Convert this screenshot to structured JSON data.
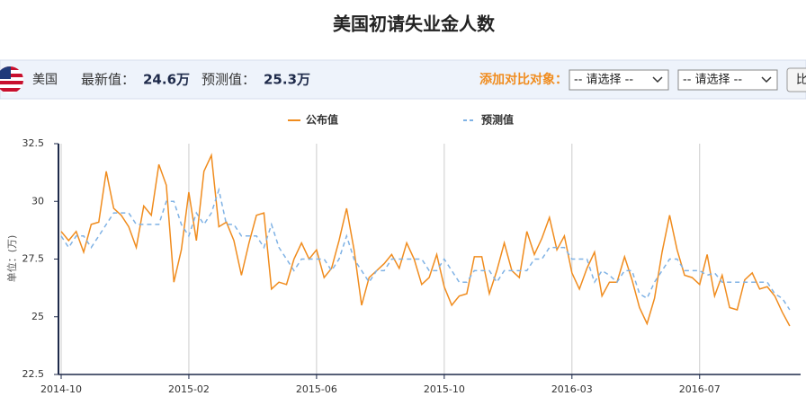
{
  "toolbar": {
    "country": "美国",
    "latest_label": "最新值：",
    "latest_value": "24.6万",
    "forecast_label": "预测值：",
    "forecast_value": "25.3万",
    "compare_label": "添加对比对象：",
    "select1": "-- 请选择 --",
    "select2": "-- 请选择 --",
    "button": "比"
  },
  "chart_data": {
    "type": "line",
    "title": "美国初请失业金人数",
    "y_label": "单位：(万)",
    "categories": [
      "2014-10",
      null,
      null,
      null,
      null,
      null,
      null,
      null,
      null,
      null,
      null,
      null,
      null,
      null,
      null,
      null,
      null,
      "2015-02",
      null,
      null,
      null,
      null,
      null,
      null,
      null,
      null,
      null,
      null,
      null,
      null,
      null,
      null,
      null,
      null,
      "2015-06",
      null,
      null,
      null,
      null,
      null,
      null,
      null,
      null,
      null,
      null,
      null,
      null,
      null,
      null,
      null,
      null,
      "2015-10",
      null,
      null,
      null,
      null,
      null,
      null,
      null,
      null,
      null,
      null,
      null,
      null,
      null,
      null,
      null,
      null,
      "2016-03",
      null,
      null,
      null,
      null,
      null,
      null,
      null,
      null,
      null,
      null,
      null,
      null,
      null,
      null,
      null,
      null,
      "2016-07",
      null,
      null,
      null,
      null,
      null,
      null,
      null,
      null,
      null,
      null,
      null,
      null
    ],
    "series": [
      {
        "name": "公布值",
        "color": "#f08c1e",
        "dashed": false,
        "values": [
          28.7,
          28.3,
          28.7,
          27.8,
          29.0,
          29.1,
          31.3,
          29.7,
          29.4,
          28.9,
          28.0,
          29.8,
          29.4,
          31.6,
          30.7,
          26.5,
          27.9,
          30.4,
          28.3,
          31.3,
          32.0,
          28.9,
          29.1,
          28.3,
          26.8,
          28.2,
          29.4,
          29.5,
          26.2,
          26.5,
          26.4,
          27.5,
          28.2,
          27.5,
          27.9,
          26.7,
          27.1,
          28.3,
          29.7,
          27.9,
          25.5,
          26.7,
          27.0,
          27.3,
          27.7,
          27.1,
          28.2,
          27.5,
          26.4,
          26.7,
          27.7,
          26.3,
          25.5,
          25.9,
          26.0,
          27.6,
          27.6,
          26.0,
          27.0,
          28.2,
          27.0,
          26.7,
          28.7,
          27.7,
          28.4,
          29.3,
          27.9,
          28.5,
          26.9,
          26.2,
          27.1,
          27.8,
          25.9,
          26.5,
          26.5,
          27.6,
          26.6,
          25.4,
          24.7,
          25.8,
          27.8,
          29.4,
          27.9,
          26.8,
          26.7,
          26.4,
          27.7,
          25.9,
          26.8,
          25.4,
          25.3,
          26.6,
          26.9,
          26.2,
          26.3,
          25.9,
          25.2,
          24.6
        ]
      },
      {
        "name": "预测值",
        "color": "#7fb2e5",
        "dashed": true,
        "values": [
          28.5,
          28.0,
          28.5,
          28.5,
          28.0,
          28.5,
          29.0,
          29.5,
          29.5,
          29.5,
          29.0,
          29.0,
          29.0,
          29.0,
          30.0,
          30.0,
          29.0,
          28.5,
          29.5,
          29.0,
          29.5,
          30.5,
          29.0,
          29.0,
          28.5,
          28.5,
          28.5,
          28.0,
          29.0,
          28.0,
          27.5,
          27.0,
          27.5,
          27.5,
          27.5,
          27.5,
          27.0,
          27.5,
          28.5,
          27.5,
          27.0,
          26.5,
          27.0,
          27.0,
          27.5,
          27.5,
          27.5,
          27.5,
          27.5,
          27.0,
          27.0,
          27.5,
          27.0,
          26.5,
          26.5,
          27.0,
          27.0,
          27.0,
          26.5,
          27.0,
          27.0,
          27.0,
          27.0,
          27.5,
          27.5,
          28.0,
          28.0,
          28.0,
          27.5,
          27.5,
          27.5,
          26.5,
          27.0,
          26.8,
          26.5,
          27.0,
          27.0,
          26.0,
          25.8,
          26.5,
          27.0,
          27.5,
          27.5,
          27.0,
          27.0,
          27.0,
          26.8,
          26.9,
          26.5,
          26.5,
          26.5,
          26.5,
          26.5,
          26.5,
          26.5,
          26.0,
          25.8,
          25.3
        ]
      }
    ],
    "ylim": [
      22.5,
      32.5
    ],
    "yticks": [
      22.5,
      25,
      27.5,
      30,
      32.5
    ],
    "grid": "vertical"
  }
}
